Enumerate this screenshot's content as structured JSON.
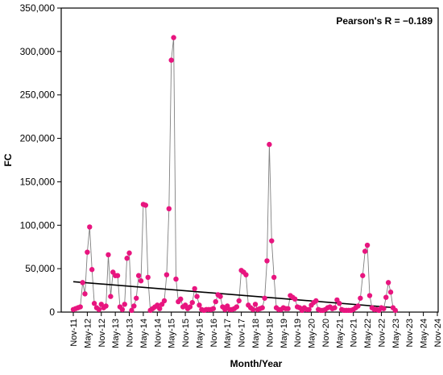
{
  "chart_data": {
    "type": "scatter",
    "xlabel": "Month/Year",
    "ylabel": "FC",
    "ylim": [
      0,
      350000
    ],
    "yticks": [
      "0",
      "50,000",
      "100,000",
      "150,000",
      "200,000",
      "250,000",
      "300,000",
      "350,000"
    ],
    "xticks": [
      "Nov-11",
      "May-12",
      "Nov-12",
      "May-13",
      "Nov-13",
      "May-14",
      "Nov-14",
      "May-15",
      "Nov-15",
      "May-16",
      "Nov-16",
      "May-17",
      "Nov-17",
      "May-18",
      "Nov-18",
      "May-19",
      "Nov-19",
      "May-20",
      "Nov-20",
      "May-21",
      "Nov-21",
      "May-22",
      "Nov-22",
      "May-23",
      "Nov-23",
      "May-24",
      "Nov-24"
    ],
    "annotation": "Pearson's R = −0.189",
    "colors": {
      "points": "#e8157f",
      "line": "#808080",
      "trend": "#000000"
    },
    "series": [
      {
        "values": [
          3000,
          4000,
          5000,
          6000,
          34000,
          21000,
          69000,
          98000,
          49000,
          10000,
          5000,
          3000,
          9000,
          5000,
          7000,
          66000,
          18000,
          46000,
          42000,
          42000,
          6000,
          3000,
          9000,
          62000,
          68000,
          2000,
          7000,
          16000,
          42000,
          36000,
          124000,
          123000,
          40000,
          2000,
          4000,
          6000,
          8000,
          4000,
          9000,
          13000,
          43000,
          119000,
          290000,
          316000,
          38000,
          12000,
          15000,
          6000,
          8000,
          4000,
          6000,
          11000,
          27000,
          18000,
          8000,
          3000,
          2000,
          3000,
          3000,
          3000,
          4000,
          12000,
          20000,
          18000,
          6000,
          3000,
          7000,
          3000,
          3000,
          4000,
          6000,
          13000,
          48000,
          46000,
          43000,
          8000,
          5000,
          3000,
          9000,
          3000,
          4000,
          5000,
          16000,
          59000,
          193000,
          82000,
          40000,
          5000,
          3000,
          3000,
          5000,
          4000,
          4000,
          19000,
          17000,
          15000,
          6000,
          5000,
          2000,
          5000,
          3000,
          3000,
          8000,
          11000,
          13000,
          3000,
          2000,
          2000,
          3000,
          5000,
          6000,
          4000,
          5000,
          14000,
          10000,
          3000,
          2000,
          2000,
          2000,
          2000,
          3000,
          5000,
          7000,
          16000,
          42000,
          70000,
          77000,
          19000,
          5000,
          3000,
          3000,
          2000,
          5000,
          4000,
          17000,
          34000,
          23000,
          5000,
          2000
        ]
      }
    ],
    "trendline": {
      "start": 35000,
      "end": 5000
    }
  }
}
